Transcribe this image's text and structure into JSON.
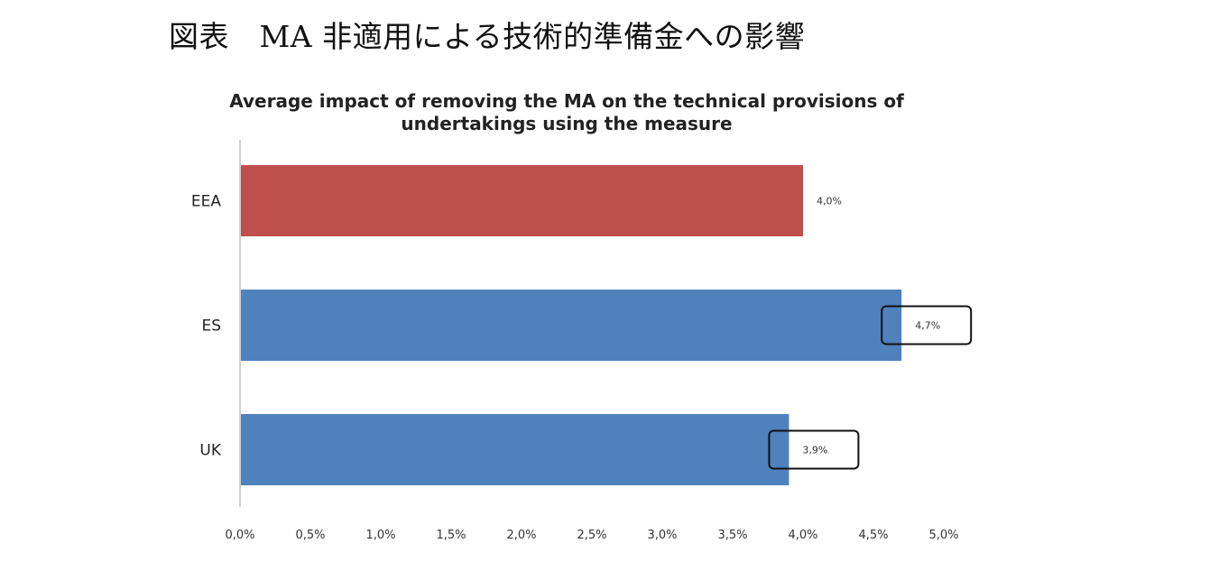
{
  "page": {
    "heading": "図表　MA 非適用による技術的準備金への影響"
  },
  "chart_data": {
    "type": "bar",
    "orientation": "horizontal",
    "title": "Average impact of removing the MA on the technical provisions of undertakings using the measure",
    "categories": [
      "EEA",
      "ES",
      "UK"
    ],
    "values": [
      4.0,
      4.7,
      3.9
    ],
    "data_labels": [
      "4,0%",
      "4,7%",
      "3,9%"
    ],
    "highlighted": [
      false,
      true,
      true
    ],
    "colors": [
      "#c0504d",
      "#4f81bd",
      "#4f81bd"
    ],
    "xlim": [
      0,
      5.0
    ],
    "x_ticks": [
      0,
      0.5,
      1.0,
      1.5,
      2.0,
      2.5,
      3.0,
      3.5,
      4.0,
      4.5,
      5.0
    ],
    "x_tick_labels": [
      "0,0%",
      "0,5%",
      "1,0%",
      "1,5%",
      "2,0%",
      "2,5%",
      "3,0%",
      "3,5%",
      "4,0%",
      "4,5%",
      "5,0%"
    ],
    "xlabel": "",
    "ylabel": "",
    "grid": false,
    "legend": "none"
  }
}
